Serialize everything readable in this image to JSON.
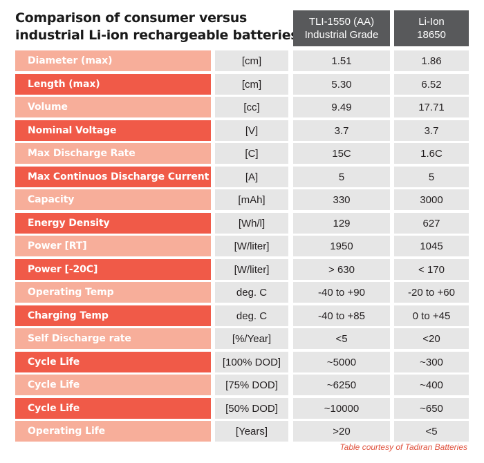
{
  "title": {
    "line1": "Comparison of consumer versus",
    "line2": "industrial Li-ion rechargeable batteries"
  },
  "columns": [
    {
      "line1": "TLI-1550 (AA)",
      "line2": "Industrial Grade"
    },
    {
      "line1": "Li-Ion",
      "line2": "18650"
    }
  ],
  "rows": [
    {
      "label": "Diameter (max)",
      "unit": "[cm]",
      "v1": "1.51",
      "v2": "1.86",
      "shade": "light"
    },
    {
      "label": "Length (max)",
      "unit": "[cm]",
      "v1": "5.30",
      "v2": "6.52",
      "shade": "dark"
    },
    {
      "label": "Volume",
      "unit": "[cc]",
      "v1": "9.49",
      "v2": "17.71",
      "shade": "light"
    },
    {
      "label": "Nominal Voltage",
      "unit": "[V]",
      "v1": "3.7",
      "v2": "3.7",
      "shade": "dark"
    },
    {
      "label": "Max Discharge Rate",
      "unit": "[C]",
      "v1": "15C",
      "v2": "1.6C",
      "shade": "light"
    },
    {
      "label": "Max Continuos Discharge Current",
      "unit": "[A]",
      "v1": "5",
      "v2": "5",
      "shade": "dark"
    },
    {
      "label": "Capacity",
      "unit": "[mAh]",
      "v1": "330",
      "v2": "3000",
      "shade": "light"
    },
    {
      "label": "Energy Density",
      "unit": "[Wh/l]",
      "v1": "129",
      "v2": "627",
      "shade": "dark"
    },
    {
      "label": "Power [RT]",
      "unit": "[W/liter]",
      "v1": "1950",
      "v2": "1045",
      "shade": "light"
    },
    {
      "label": "Power [-20C]",
      "unit": "[W/liter]",
      "v1": "> 630",
      "v2": "< 170",
      "shade": "dark"
    },
    {
      "label": "Operating Temp",
      "unit": "deg. C",
      "v1": "-40 to +90",
      "v2": "-20 to +60",
      "shade": "light"
    },
    {
      "label": "Charging Temp",
      "unit": "deg. C",
      "v1": "-40 to +85",
      "v2": "0 to +45",
      "shade": "dark"
    },
    {
      "label": "Self Discharge rate",
      "unit": "[%/Year]",
      "v1": "<5",
      "v2": "<20",
      "shade": "light"
    },
    {
      "label": "Cycle Life",
      "unit": "[100% DOD]",
      "v1": "~5000",
      "v2": "~300",
      "shade": "dark"
    },
    {
      "label": "Cycle Life",
      "unit": "[75% DOD]",
      "v1": "~6250",
      "v2": "~400",
      "shade": "light"
    },
    {
      "label": "Cycle Life",
      "unit": "[50% DOD]",
      "v1": "~10000",
      "v2": "~650",
      "shade": "dark"
    },
    {
      "label": "Operating Life",
      "unit": "[Years]",
      "v1": ">20",
      "v2": "<5",
      "shade": "light"
    }
  ],
  "credit": "Table courtesy of Tadiran Batteries",
  "colors": {
    "header_bg": "#58595b",
    "label_light": "#f7ae9a",
    "label_dark": "#f05a48",
    "value_bg": "#e6e6e6",
    "credit_text": "#e0533f"
  }
}
